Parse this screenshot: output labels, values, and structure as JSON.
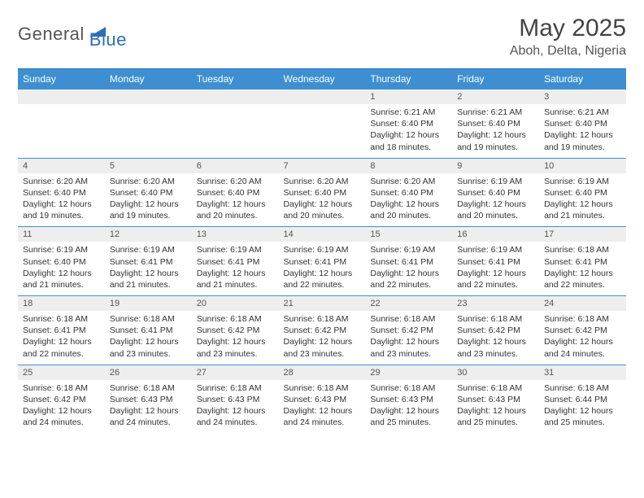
{
  "logo": {
    "part1": "General",
    "part2": "Blue"
  },
  "title": "May 2025",
  "location": "Aboh, Delta, Nigeria",
  "colors": {
    "header_bg": "#3d8fd1",
    "header_text": "#ffffff",
    "daterow_bg": "#eeeeee",
    "border": "#3d8fd1",
    "logo_blue": "#2a6fb5",
    "logo_gray": "#555555"
  },
  "dayNames": [
    "Sunday",
    "Monday",
    "Tuesday",
    "Wednesday",
    "Thursday",
    "Friday",
    "Saturday"
  ],
  "weeks": [
    {
      "dates": [
        "",
        "",
        "",
        "",
        "1",
        "2",
        "3"
      ],
      "info": [
        "",
        "",
        "",
        "",
        "Sunrise: 6:21 AM\nSunset: 6:40 PM\nDaylight: 12 hours and 18 minutes.",
        "Sunrise: 6:21 AM\nSunset: 6:40 PM\nDaylight: 12 hours and 19 minutes.",
        "Sunrise: 6:21 AM\nSunset: 6:40 PM\nDaylight: 12 hours and 19 minutes."
      ]
    },
    {
      "dates": [
        "4",
        "5",
        "6",
        "7",
        "8",
        "9",
        "10"
      ],
      "info": [
        "Sunrise: 6:20 AM\nSunset: 6:40 PM\nDaylight: 12 hours and 19 minutes.",
        "Sunrise: 6:20 AM\nSunset: 6:40 PM\nDaylight: 12 hours and 19 minutes.",
        "Sunrise: 6:20 AM\nSunset: 6:40 PM\nDaylight: 12 hours and 20 minutes.",
        "Sunrise: 6:20 AM\nSunset: 6:40 PM\nDaylight: 12 hours and 20 minutes.",
        "Sunrise: 6:20 AM\nSunset: 6:40 PM\nDaylight: 12 hours and 20 minutes.",
        "Sunrise: 6:19 AM\nSunset: 6:40 PM\nDaylight: 12 hours and 20 minutes.",
        "Sunrise: 6:19 AM\nSunset: 6:40 PM\nDaylight: 12 hours and 21 minutes."
      ]
    },
    {
      "dates": [
        "11",
        "12",
        "13",
        "14",
        "15",
        "16",
        "17"
      ],
      "info": [
        "Sunrise: 6:19 AM\nSunset: 6:40 PM\nDaylight: 12 hours and 21 minutes.",
        "Sunrise: 6:19 AM\nSunset: 6:41 PM\nDaylight: 12 hours and 21 minutes.",
        "Sunrise: 6:19 AM\nSunset: 6:41 PM\nDaylight: 12 hours and 21 minutes.",
        "Sunrise: 6:19 AM\nSunset: 6:41 PM\nDaylight: 12 hours and 22 minutes.",
        "Sunrise: 6:19 AM\nSunset: 6:41 PM\nDaylight: 12 hours and 22 minutes.",
        "Sunrise: 6:19 AM\nSunset: 6:41 PM\nDaylight: 12 hours and 22 minutes.",
        "Sunrise: 6:18 AM\nSunset: 6:41 PM\nDaylight: 12 hours and 22 minutes."
      ]
    },
    {
      "dates": [
        "18",
        "19",
        "20",
        "21",
        "22",
        "23",
        "24"
      ],
      "info": [
        "Sunrise: 6:18 AM\nSunset: 6:41 PM\nDaylight: 12 hours and 22 minutes.",
        "Sunrise: 6:18 AM\nSunset: 6:41 PM\nDaylight: 12 hours and 23 minutes.",
        "Sunrise: 6:18 AM\nSunset: 6:42 PM\nDaylight: 12 hours and 23 minutes.",
        "Sunrise: 6:18 AM\nSunset: 6:42 PM\nDaylight: 12 hours and 23 minutes.",
        "Sunrise: 6:18 AM\nSunset: 6:42 PM\nDaylight: 12 hours and 23 minutes.",
        "Sunrise: 6:18 AM\nSunset: 6:42 PM\nDaylight: 12 hours and 23 minutes.",
        "Sunrise: 6:18 AM\nSunset: 6:42 PM\nDaylight: 12 hours and 24 minutes."
      ]
    },
    {
      "dates": [
        "25",
        "26",
        "27",
        "28",
        "29",
        "30",
        "31"
      ],
      "info": [
        "Sunrise: 6:18 AM\nSunset: 6:42 PM\nDaylight: 12 hours and 24 minutes.",
        "Sunrise: 6:18 AM\nSunset: 6:43 PM\nDaylight: 12 hours and 24 minutes.",
        "Sunrise: 6:18 AM\nSunset: 6:43 PM\nDaylight: 12 hours and 24 minutes.",
        "Sunrise: 6:18 AM\nSunset: 6:43 PM\nDaylight: 12 hours and 24 minutes.",
        "Sunrise: 6:18 AM\nSunset: 6:43 PM\nDaylight: 12 hours and 25 minutes.",
        "Sunrise: 6:18 AM\nSunset: 6:43 PM\nDaylight: 12 hours and 25 minutes.",
        "Sunrise: 6:18 AM\nSunset: 6:44 PM\nDaylight: 12 hours and 25 minutes."
      ]
    }
  ]
}
